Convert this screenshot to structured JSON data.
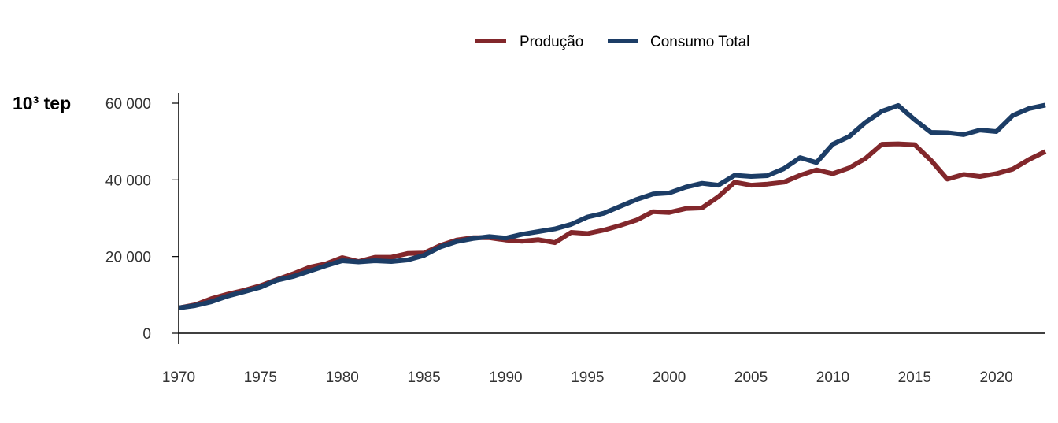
{
  "chart_data": {
    "type": "line",
    "title": "",
    "xlabel": "",
    "ylabel": "10³ tep",
    "xlim": [
      1970,
      2023
    ],
    "ylim": [
      0,
      60000
    ],
    "x_ticks": [
      1970,
      1975,
      1980,
      1985,
      1990,
      1995,
      2000,
      2005,
      2010,
      2015,
      2020
    ],
    "y_ticks": [
      0,
      20000,
      40000,
      60000
    ],
    "y_tick_labels": [
      "0",
      "20 000",
      "40 000",
      "60 000"
    ],
    "grid": false,
    "legend_position": "top",
    "x": [
      1970,
      1971,
      1972,
      1973,
      1974,
      1975,
      1976,
      1977,
      1978,
      1979,
      1980,
      1981,
      1982,
      1983,
      1984,
      1985,
      1986,
      1987,
      1988,
      1989,
      1990,
      1991,
      1992,
      1993,
      1994,
      1995,
      1996,
      1997,
      1998,
      1999,
      2000,
      2001,
      2002,
      2003,
      2004,
      2005,
      2006,
      2007,
      2008,
      2009,
      2010,
      2011,
      2012,
      2013,
      2014,
      2015,
      2016,
      2017,
      2018,
      2019,
      2020,
      2021,
      2022,
      2023
    ],
    "series": [
      {
        "name": "Produção",
        "color": "#82272b",
        "values": [
          6600,
          7400,
          9000,
          10200,
          11200,
          12400,
          14000,
          15500,
          17200,
          18100,
          19700,
          18700,
          19800,
          19800,
          20800,
          20900,
          22900,
          24300,
          24900,
          24900,
          24300,
          24000,
          24400,
          23600,
          26300,
          26000,
          26900,
          28100,
          29500,
          31700,
          31500,
          32500,
          32700,
          35600,
          39400,
          38600,
          38900,
          39400,
          41200,
          42600,
          41600,
          43100,
          45600,
          49300,
          49400,
          49200,
          45100,
          40200,
          41400,
          40900,
          41600,
          42800,
          45300,
          47400
        ]
      },
      {
        "name": "Consumo Total",
        "color": "#1c3d66",
        "values": [
          6600,
          7200,
          8200,
          9700,
          10800,
          12000,
          13800,
          14800,
          16200,
          17600,
          18900,
          18600,
          18900,
          18700,
          19100,
          20300,
          22500,
          23900,
          24700,
          25200,
          24800,
          25800,
          26500,
          27200,
          28400,
          30300,
          31300,
          33100,
          34900,
          36300,
          36600,
          38100,
          39100,
          38600,
          41200,
          40900,
          41100,
          42900,
          45800,
          44500,
          49300,
          51300,
          55000,
          57900,
          59400,
          55700,
          52400,
          52300,
          51800,
          53000,
          52600,
          56800,
          58600,
          59500
        ]
      }
    ]
  }
}
